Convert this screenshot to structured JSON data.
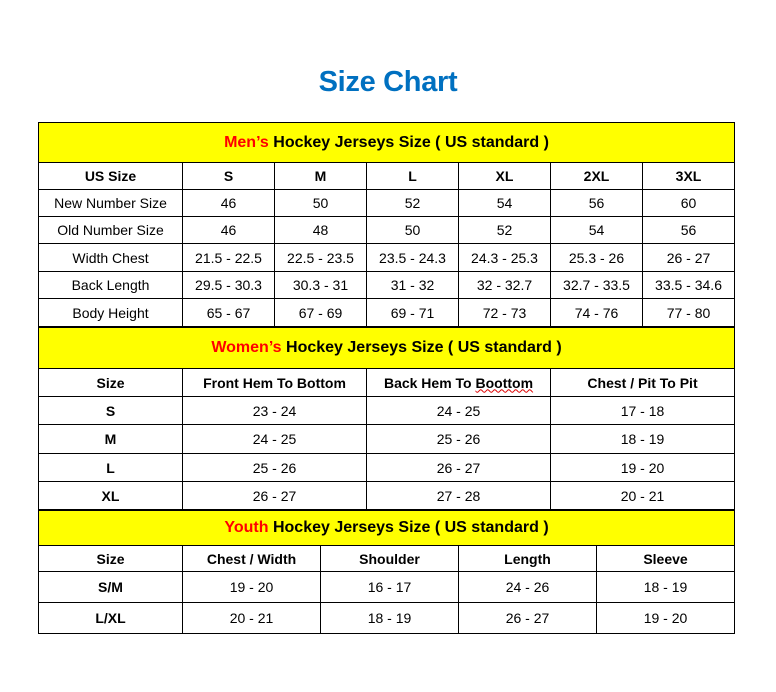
{
  "title": "Size Chart",
  "colors": {
    "title": "#0070C0",
    "header_bg": "#FFFF00",
    "prefix": "#FF0000"
  },
  "men": {
    "heading_prefix": "Men’s",
    "heading_rest": " Hockey Jerseys Size ( US standard )",
    "columns": [
      "US Size",
      "S",
      "M",
      "L",
      "XL",
      "2XL",
      "3XL"
    ],
    "rows": [
      [
        "New Number Size",
        "46",
        "50",
        "52",
        "54",
        "56",
        "60"
      ],
      [
        "Old Number Size",
        "46",
        "48",
        "50",
        "52",
        "54",
        "56"
      ],
      [
        "Width Chest",
        "21.5 - 22.5",
        "22.5 - 23.5",
        "23.5 - 24.3",
        "24.3 - 25.3",
        "25.3 - 26",
        "26 - 27"
      ],
      [
        "Back Length",
        "29.5 - 30.3",
        "30.3 - 31",
        "31 - 32",
        "32 - 32.7",
        "32.7 - 33.5",
        "33.5 - 34.6"
      ],
      [
        "Body Height",
        "65 - 67",
        "67 - 69",
        "69 - 71",
        "72 - 73",
        "74 - 76",
        "77 - 80"
      ]
    ]
  },
  "women": {
    "heading_prefix": "Women’s",
    "heading_rest": " Hockey Jerseys Size ( US standard )",
    "columns": [
      "Size",
      "Front Hem To Bottom",
      "Back Hem To Boottom",
      "Chest / Pit To Pit"
    ],
    "rows": [
      [
        "S",
        "23 - 24",
        "24 - 25",
        "17 - 18"
      ],
      [
        "M",
        "24 - 25",
        "25 - 26",
        "18 - 19"
      ],
      [
        "L",
        "25 - 26",
        "26 - 27",
        "19 - 20"
      ],
      [
        "XL",
        "26 - 27",
        "27 - 28",
        "20 - 21"
      ]
    ]
  },
  "youth": {
    "heading_prefix": "Youth",
    "heading_rest": " Hockey Jerseys Size ( US standard )",
    "columns": [
      "Size",
      "Chest / Width",
      "Shoulder",
      "Length",
      "Sleeve"
    ],
    "rows": [
      [
        "S/M",
        "19 - 20",
        "16 - 17",
        "24 - 26",
        "18 - 19"
      ],
      [
        "L/XL",
        "20 - 21",
        "18 - 19",
        "26 - 27",
        "19 - 20"
      ]
    ]
  }
}
